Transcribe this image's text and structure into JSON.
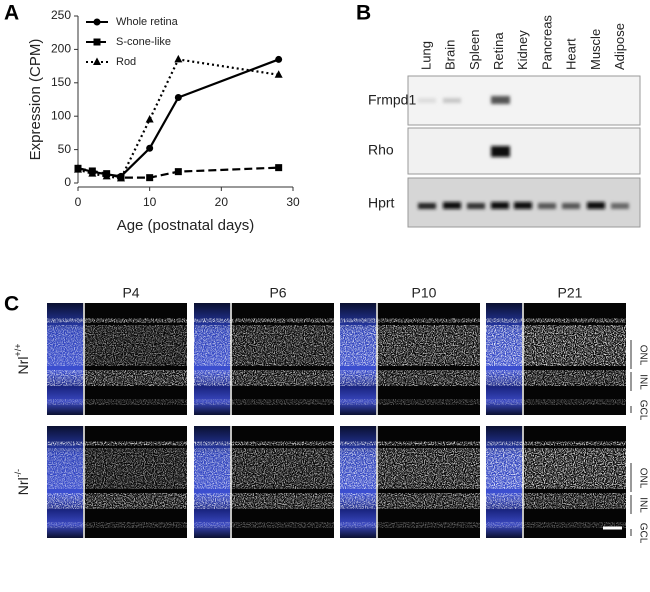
{
  "panel_labels": [
    "A",
    "B",
    "C"
  ],
  "chart_data": {
    "type": "line",
    "xlabel": "Age (postnatal days)",
    "ylabel": "Expression (CPM)",
    "x": [
      0,
      2,
      4,
      6,
      10,
      14,
      28
    ],
    "series": [
      {
        "name": "Whole retina",
        "color": "#000000",
        "linestyle": "solid",
        "marker": "circle",
        "values": [
          22,
          17,
          13,
          10,
          52,
          128,
          185
        ]
      },
      {
        "name": "S-cone-like",
        "color": "#000000",
        "linestyle": "dashed",
        "marker": "square",
        "values": [
          22,
          18,
          14,
          8,
          8,
          17,
          23
        ]
      },
      {
        "name": "Rod",
        "color": "#000000",
        "linestyle": "dotted",
        "marker": "triangle",
        "values": [
          20,
          14,
          10,
          7,
          95,
          185,
          162
        ]
      }
    ],
    "xlim": [
      0,
      30
    ],
    "xticks": [
      0,
      10,
      20,
      30
    ],
    "ylim": [
      0,
      250
    ],
    "yticks": [
      0,
      50,
      100,
      150,
      200,
      250
    ],
    "legend": "upper left"
  },
  "gel": {
    "lanes": [
      "Lung",
      "Brain",
      "Spleen",
      "Retina",
      "Kidney",
      "Pancreas",
      "Heart",
      "Muscle",
      "Adipose"
    ],
    "genes": [
      "Frmpd1",
      "Rho",
      "Hprt"
    ]
  },
  "micrographs": {
    "columns": [
      "P4",
      "P6",
      "P10",
      "P21"
    ],
    "rows": [
      {
        "label": {
          "base": "Nrl",
          "superscript": "+/+"
        },
        "layers": [
          "ONL",
          "INL",
          "GCL"
        ]
      },
      {
        "label": {
          "base": "Nrl",
          "superscript": "-/-"
        },
        "layers": [
          "ONL",
          "INL",
          "GCL"
        ]
      }
    ]
  }
}
